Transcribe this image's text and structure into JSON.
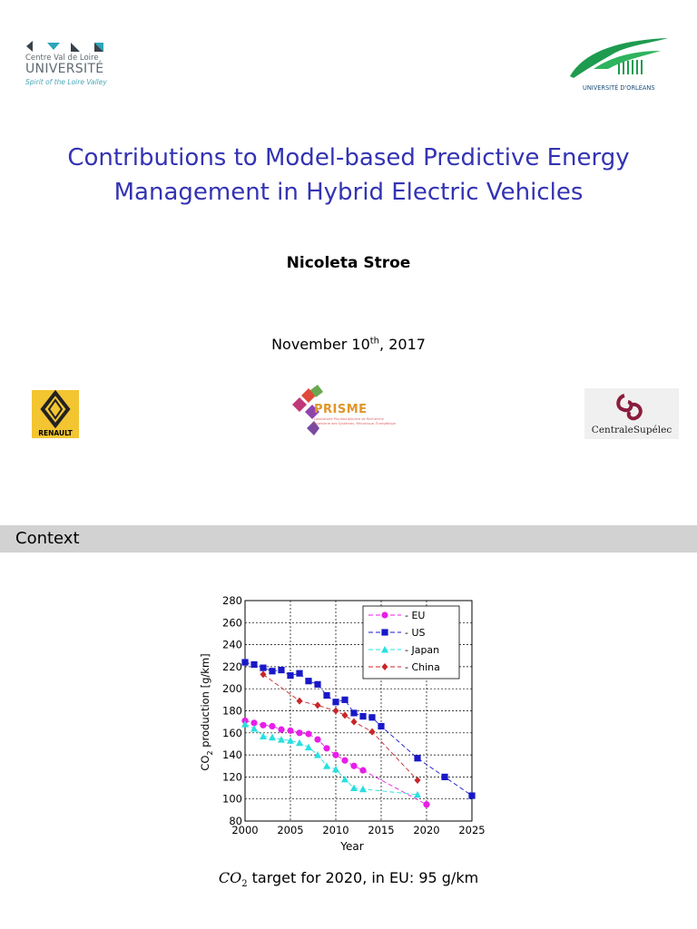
{
  "logos": {
    "top_left": {
      "line1": "Centre Val de Loire",
      "line2": "UNIVERSITÉ",
      "line3": "Spirit of the Loire Valley"
    },
    "top_right": {
      "caption": "UNIVERSITÉ D'ORLÉANS"
    },
    "renault": {
      "name": "RENAULT"
    },
    "prisme": {
      "name": "PRISME",
      "sub1": "Laboratoire Pluridisciplinaire de Recherche",
      "sub2": "Ingénierie des Systèmes, Mécanique, Énergétique"
    },
    "centrale": {
      "name": "CentraleSupélec"
    }
  },
  "title": {
    "line1": "Contributions to Model-based Predictive Energy",
    "line2": "Management in Hybrid Electric Vehicles"
  },
  "author": "Nicoleta Stroe",
  "date": {
    "pre": "November 10",
    "sup": "th",
    "post": ", 2017"
  },
  "frame": {
    "title": "Context"
  },
  "caption": {
    "math_main": "CO",
    "math_sub": "2",
    "text": " target for 2020, in EU: 95 g/km"
  },
  "colors": {
    "title": "#3333b3",
    "frame_bar": "#d2d2d2"
  },
  "chart_data": {
    "type": "line",
    "xlabel": "Year",
    "ylabel_main": "CO",
    "ylabel_sub": "2",
    "ylabel_rest": " production  [g/km]",
    "xlim": [
      2000,
      2025
    ],
    "ylim": [
      80,
      280
    ],
    "xticks": [
      2000,
      2005,
      2010,
      2015,
      2020,
      2025
    ],
    "yticks": [
      80,
      100,
      120,
      140,
      160,
      180,
      200,
      220,
      240,
      260,
      280
    ],
    "grid": true,
    "legend_position": "top-right",
    "series": [
      {
        "name": "EU",
        "color": "#e81ee8",
        "marker": "circle",
        "x": [
          2000,
          2001,
          2002,
          2003,
          2004,
          2005,
          2006,
          2007,
          2008,
          2009,
          2010,
          2011,
          2012,
          2013,
          2020
        ],
        "y": [
          171,
          169,
          167,
          166,
          163,
          162,
          160,
          159,
          154,
          146,
          140,
          135,
          130,
          126,
          95
        ]
      },
      {
        "name": "US",
        "color": "#1818c8",
        "marker": "square",
        "x": [
          2000,
          2001,
          2002,
          2003,
          2004,
          2005,
          2006,
          2007,
          2008,
          2009,
          2010,
          2011,
          2012,
          2013,
          2014,
          2015,
          2019,
          2022,
          2025
        ],
        "y": [
          224,
          222,
          219,
          216,
          217,
          212,
          214,
          207,
          204,
          194,
          188,
          190,
          178,
          175,
          174,
          166,
          137,
          120,
          103
        ]
      },
      {
        "name": "Japan",
        "color": "#28e0e0",
        "marker": "triangle",
        "x": [
          2000,
          2001,
          2002,
          2003,
          2004,
          2005,
          2006,
          2007,
          2008,
          2009,
          2010,
          2011,
          2012,
          2013,
          2019
        ],
        "y": [
          168,
          164,
          157,
          156,
          154,
          153,
          151,
          147,
          140,
          130,
          127,
          118,
          110,
          109,
          104
        ]
      },
      {
        "name": "China",
        "color": "#c8262a",
        "marker": "diamond",
        "x": [
          2002,
          2006,
          2008,
          2010,
          2011,
          2012,
          2014,
          2019
        ],
        "y": [
          213,
          189,
          185,
          180,
          176,
          170,
          161,
          117
        ]
      }
    ]
  }
}
